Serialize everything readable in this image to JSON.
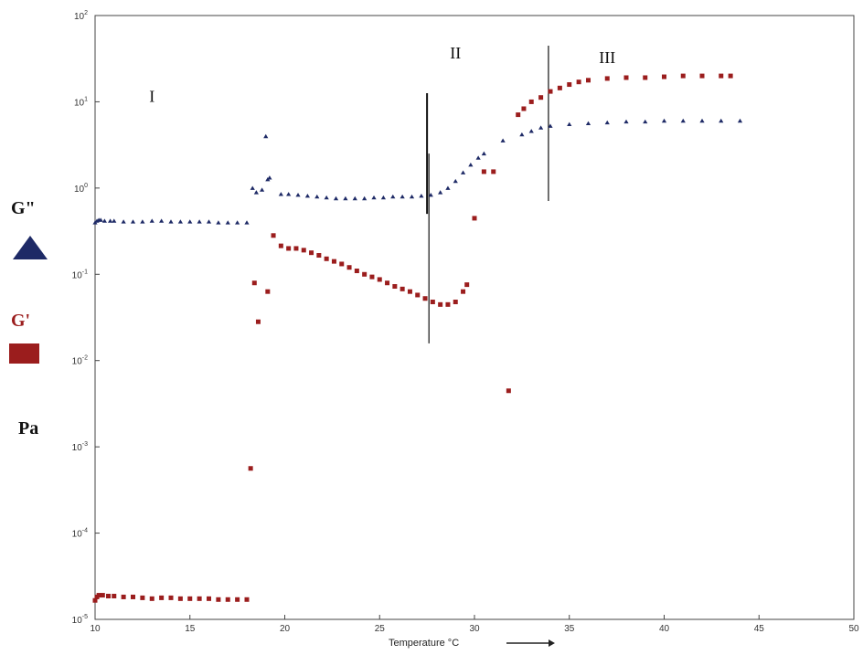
{
  "legend": {
    "g2_label": "G\"",
    "g2_icon": "triangle-icon",
    "g1_label": "G'",
    "g1_icon": "square-icon",
    "unit_label": "Pa"
  },
  "colors": {
    "g2": "#1e2a66",
    "g1": "#9b1d1d",
    "axis": "#444444"
  },
  "chart_data": {
    "type": "scatter",
    "title": "",
    "xlabel": "Temperature °C",
    "ylabel": "Pa",
    "xlim": [
      10,
      50
    ],
    "ylim_log10": [
      -5,
      2
    ],
    "y_scale": "log",
    "x_ticks": [
      10,
      15,
      20,
      25,
      30,
      35,
      40,
      45,
      50
    ],
    "y_ticks": [
      {
        "base": "10",
        "exp": "2"
      },
      {
        "base": "10",
        "exp": "1"
      },
      {
        "base": "10",
        "exp": "0"
      },
      {
        "base": "10",
        "exp": "-1"
      },
      {
        "base": "10",
        "exp": "-2"
      },
      {
        "base": "10",
        "exp": "-3"
      },
      {
        "base": "10",
        "exp": "-4"
      },
      {
        "base": "10",
        "exp": "-5"
      }
    ],
    "regions": [
      {
        "label": "I",
        "x": 13.0
      },
      {
        "label": "II",
        "x": 29.0
      },
      {
        "label": "III",
        "x": 37.0
      }
    ],
    "boundaries": [
      {
        "x": 27.5,
        "y_range_log10": [
          -0.3,
          1.1
        ]
      },
      {
        "x": 27.6,
        "y_range_log10": [
          -1.8,
          0.4
        ]
      },
      {
        "x": 33.9,
        "y_range_log10": [
          -0.15,
          1.65
        ]
      }
    ],
    "series": [
      {
        "name": "G\"",
        "marker": "triangle",
        "points": [
          [
            10.0,
            -0.4
          ],
          [
            10.1,
            -0.38
          ],
          [
            10.2,
            -0.37
          ],
          [
            10.3,
            -0.37
          ],
          [
            10.5,
            -0.38
          ],
          [
            10.8,
            -0.38
          ],
          [
            11.0,
            -0.38
          ],
          [
            11.5,
            -0.39
          ],
          [
            12.0,
            -0.39
          ],
          [
            12.5,
            -0.39
          ],
          [
            13.0,
            -0.38
          ],
          [
            13.5,
            -0.38
          ],
          [
            14.0,
            -0.39
          ],
          [
            14.5,
            -0.39
          ],
          [
            15.0,
            -0.39
          ],
          [
            15.5,
            -0.39
          ],
          [
            16.0,
            -0.39
          ],
          [
            16.5,
            -0.4
          ],
          [
            17.0,
            -0.4
          ],
          [
            17.5,
            -0.4
          ],
          [
            18.0,
            -0.4
          ],
          [
            18.3,
            0.0
          ],
          [
            18.5,
            -0.05
          ],
          [
            18.8,
            -0.02
          ],
          [
            19.0,
            0.6
          ],
          [
            19.1,
            0.1
          ],
          [
            19.2,
            0.12
          ],
          [
            19.8,
            -0.07
          ],
          [
            20.2,
            -0.07
          ],
          [
            20.7,
            -0.08
          ],
          [
            21.2,
            -0.09
          ],
          [
            21.7,
            -0.1
          ],
          [
            22.2,
            -0.11
          ],
          [
            22.7,
            -0.12
          ],
          [
            23.2,
            -0.12
          ],
          [
            23.7,
            -0.12
          ],
          [
            24.2,
            -0.12
          ],
          [
            24.7,
            -0.11
          ],
          [
            25.2,
            -0.11
          ],
          [
            25.7,
            -0.1
          ],
          [
            26.2,
            -0.1
          ],
          [
            26.7,
            -0.1
          ],
          [
            27.2,
            -0.09
          ],
          [
            27.7,
            -0.08
          ],
          [
            28.2,
            -0.05
          ],
          [
            28.6,
            0.0
          ],
          [
            29.0,
            0.08
          ],
          [
            29.4,
            0.18
          ],
          [
            29.8,
            0.27
          ],
          [
            30.2,
            0.35
          ],
          [
            30.5,
            0.4
          ],
          [
            31.5,
            0.55
          ],
          [
            32.5,
            0.62
          ],
          [
            33.0,
            0.66
          ],
          [
            33.5,
            0.7
          ],
          [
            34.0,
            0.72
          ],
          [
            35.0,
            0.74
          ],
          [
            36.0,
            0.75
          ],
          [
            37.0,
            0.76
          ],
          [
            38.0,
            0.77
          ],
          [
            39.0,
            0.77
          ],
          [
            40.0,
            0.78
          ],
          [
            41.0,
            0.78
          ],
          [
            42.0,
            0.78
          ],
          [
            43.0,
            0.78
          ],
          [
            44.0,
            0.78
          ]
        ]
      },
      {
        "name": "G'",
        "marker": "square",
        "points": [
          [
            10.0,
            -4.78
          ],
          [
            10.1,
            -4.74
          ],
          [
            10.2,
            -4.72
          ],
          [
            10.4,
            -4.72
          ],
          [
            10.7,
            -4.73
          ],
          [
            11.0,
            -4.73
          ],
          [
            11.5,
            -4.74
          ],
          [
            12.0,
            -4.74
          ],
          [
            12.5,
            -4.75
          ],
          [
            13.0,
            -4.76
          ],
          [
            13.5,
            -4.75
          ],
          [
            14.0,
            -4.75
          ],
          [
            14.5,
            -4.76
          ],
          [
            15.0,
            -4.76
          ],
          [
            15.5,
            -4.76
          ],
          [
            16.0,
            -4.76
          ],
          [
            16.5,
            -4.77
          ],
          [
            17.0,
            -4.77
          ],
          [
            17.5,
            -4.77
          ],
          [
            18.0,
            -4.77
          ],
          [
            18.2,
            -3.25
          ],
          [
            18.4,
            -1.1
          ],
          [
            18.6,
            -1.55
          ],
          [
            19.1,
            -1.2
          ],
          [
            19.4,
            -0.55
          ],
          [
            19.8,
            -0.67
          ],
          [
            20.2,
            -0.7
          ],
          [
            20.6,
            -0.7
          ],
          [
            21.0,
            -0.72
          ],
          [
            21.4,
            -0.75
          ],
          [
            21.8,
            -0.78
          ],
          [
            22.2,
            -0.82
          ],
          [
            22.6,
            -0.85
          ],
          [
            23.0,
            -0.88
          ],
          [
            23.4,
            -0.92
          ],
          [
            23.8,
            -0.96
          ],
          [
            24.2,
            -1.0
          ],
          [
            24.6,
            -1.03
          ],
          [
            25.0,
            -1.06
          ],
          [
            25.4,
            -1.1
          ],
          [
            25.8,
            -1.14
          ],
          [
            26.2,
            -1.17
          ],
          [
            26.6,
            -1.2
          ],
          [
            27.0,
            -1.24
          ],
          [
            27.4,
            -1.28
          ],
          [
            27.8,
            -1.32
          ],
          [
            28.2,
            -1.35
          ],
          [
            28.6,
            -1.35
          ],
          [
            29.0,
            -1.32
          ],
          [
            29.4,
            -1.2
          ],
          [
            29.6,
            -1.12
          ],
          [
            30.0,
            -0.35
          ],
          [
            30.5,
            0.19
          ],
          [
            31.0,
            0.19
          ],
          [
            31.8,
            -2.35
          ],
          [
            32.3,
            0.85
          ],
          [
            32.6,
            0.92
          ],
          [
            33.0,
            1.0
          ],
          [
            33.5,
            1.05
          ],
          [
            34.0,
            1.12
          ],
          [
            34.5,
            1.16
          ],
          [
            35.0,
            1.2
          ],
          [
            35.5,
            1.23
          ],
          [
            36.0,
            1.25
          ],
          [
            37.0,
            1.27
          ],
          [
            38.0,
            1.28
          ],
          [
            39.0,
            1.28
          ],
          [
            40.0,
            1.29
          ],
          [
            41.0,
            1.3
          ],
          [
            42.0,
            1.3
          ],
          [
            43.0,
            1.3
          ],
          [
            43.5,
            1.3
          ]
        ]
      }
    ]
  }
}
